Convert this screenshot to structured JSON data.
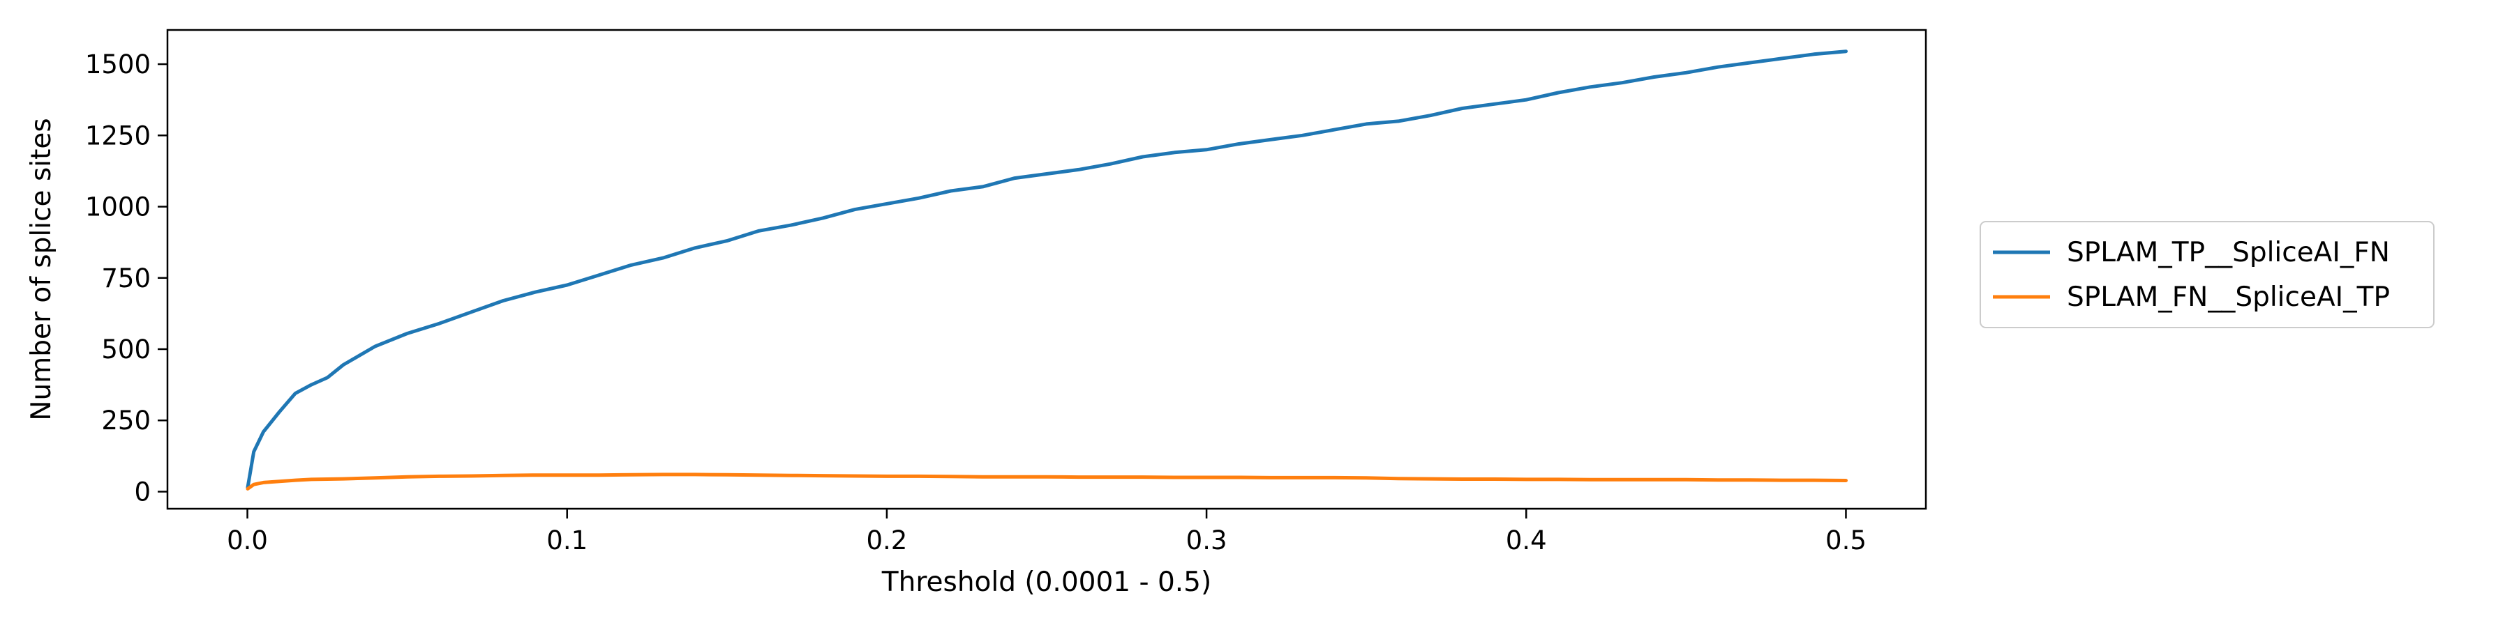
{
  "chart_data": {
    "type": "line",
    "title": "",
    "xlabel": "Threshold (0.0001 - 0.5)",
    "ylabel": "Number of splice sites",
    "xlim": [
      -0.025,
      0.525
    ],
    "ylim": [
      -60,
      1620
    ],
    "xticks": [
      0.0,
      0.1,
      0.2,
      0.3,
      0.4,
      0.5
    ],
    "xtick_labels": [
      "0.0",
      "0.1",
      "0.2",
      "0.3",
      "0.4",
      "0.5"
    ],
    "yticks": [
      0,
      250,
      500,
      750,
      1000,
      1250,
      1500
    ],
    "ytick_labels": [
      "0",
      "250",
      "500",
      "750",
      "1000",
      "1250",
      "1500"
    ],
    "grid": false,
    "legend_position": "outside-right",
    "series": [
      {
        "name": "SPLAM_TP__SpliceAI_FN",
        "color": "#1f77b4",
        "x": [
          0.0001,
          0.002,
          0.005,
          0.01,
          0.015,
          0.02,
          0.025,
          0.03,
          0.04,
          0.05,
          0.06,
          0.07,
          0.08,
          0.09,
          0.1,
          0.11,
          0.12,
          0.13,
          0.14,
          0.15,
          0.16,
          0.17,
          0.18,
          0.19,
          0.2,
          0.21,
          0.22,
          0.23,
          0.24,
          0.25,
          0.26,
          0.27,
          0.28,
          0.29,
          0.3,
          0.31,
          0.32,
          0.33,
          0.34,
          0.35,
          0.36,
          0.37,
          0.38,
          0.39,
          0.4,
          0.41,
          0.42,
          0.43,
          0.44,
          0.45,
          0.46,
          0.47,
          0.48,
          0.49,
          0.5
        ],
        "y": [
          15,
          140,
          210,
          280,
          345,
          375,
          400,
          445,
          510,
          555,
          590,
          630,
          670,
          700,
          725,
          760,
          795,
          820,
          855,
          880,
          915,
          935,
          960,
          990,
          1010,
          1030,
          1055,
          1070,
          1100,
          1115,
          1130,
          1150,
          1175,
          1190,
          1200,
          1220,
          1235,
          1250,
          1270,
          1290,
          1300,
          1320,
          1345,
          1360,
          1375,
          1400,
          1420,
          1435,
          1455,
          1470,
          1490,
          1505,
          1520,
          1535,
          1545
        ]
      },
      {
        "name": "SPLAM_FN__SpliceAI_TP",
        "color": "#ff7f0e",
        "x": [
          0.0001,
          0.002,
          0.005,
          0.01,
          0.015,
          0.02,
          0.03,
          0.04,
          0.05,
          0.06,
          0.07,
          0.08,
          0.09,
          0.1,
          0.11,
          0.12,
          0.13,
          0.14,
          0.15,
          0.16,
          0.17,
          0.18,
          0.19,
          0.2,
          0.21,
          0.22,
          0.23,
          0.24,
          0.25,
          0.26,
          0.27,
          0.28,
          0.29,
          0.3,
          0.31,
          0.32,
          0.33,
          0.34,
          0.35,
          0.36,
          0.37,
          0.38,
          0.39,
          0.4,
          0.41,
          0.42,
          0.43,
          0.44,
          0.45,
          0.46,
          0.47,
          0.48,
          0.49,
          0.5
        ],
        "y": [
          10,
          25,
          32,
          36,
          40,
          43,
          45,
          48,
          52,
          54,
          55,
          57,
          58,
          58,
          58,
          59,
          60,
          60,
          59,
          58,
          57,
          56,
          55,
          54,
          54,
          53,
          52,
          52,
          52,
          51,
          51,
          51,
          50,
          50,
          50,
          49,
          49,
          49,
          48,
          46,
          45,
          44,
          44,
          43,
          43,
          42,
          42,
          42,
          42,
          41,
          41,
          40,
          40,
          39
        ]
      }
    ]
  }
}
